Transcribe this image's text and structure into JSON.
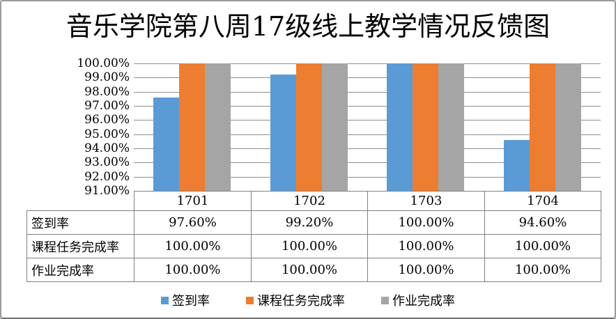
{
  "title": "音乐学院第八周17级线上教学情况反馈图",
  "chart_data": {
    "type": "bar",
    "title": "音乐学院第八周17级线上教学情况反馈图",
    "categories": [
      "1701",
      "1702",
      "1703",
      "1704"
    ],
    "series": [
      {
        "name": "签到率",
        "color": "#5B9BD5",
        "values": [
          97.6,
          99.2,
          100.0,
          94.6
        ]
      },
      {
        "name": "课程任务完成率",
        "color": "#ED7D31",
        "values": [
          100.0,
          100.0,
          100.0,
          100.0
        ]
      },
      {
        "name": "作业完成率",
        "color": "#A5A5A5",
        "values": [
          100.0,
          100.0,
          100.0,
          100.0
        ]
      }
    ],
    "ylim": [
      91,
      100
    ],
    "ytick_labels": [
      "100.00%",
      "99.00%",
      "98.00%",
      "97.00%",
      "96.00%",
      "95.00%",
      "94.00%",
      "93.00%",
      "92.00%",
      "91.00%"
    ],
    "grid": true,
    "legend_position": "bottom",
    "data_table": {
      "columns": [
        "1701",
        "1702",
        "1703",
        "1704"
      ],
      "rows": [
        {
          "label": "签到率",
          "values": [
            "97.60%",
            "99.20%",
            "100.00%",
            "94.60%"
          ]
        },
        {
          "label": "课程任务完成率",
          "values": [
            "100.00%",
            "100.00%",
            "100.00%",
            "100.00%"
          ]
        },
        {
          "label": "作业完成率",
          "values": [
            "100.00%",
            "100.00%",
            "100.00%",
            "100.00%"
          ]
        }
      ]
    }
  },
  "legend": {
    "items": [
      {
        "label": "签到率",
        "color": "#5B9BD5"
      },
      {
        "label": "课程任务完成率",
        "color": "#ED7D31"
      },
      {
        "label": "作业完成率",
        "color": "#A5A5A5"
      }
    ]
  },
  "colors": {
    "gridline": "#8E8E8E",
    "table_border": "#808080",
    "frame_border": "#9B9B9B",
    "text": "#000000"
  }
}
